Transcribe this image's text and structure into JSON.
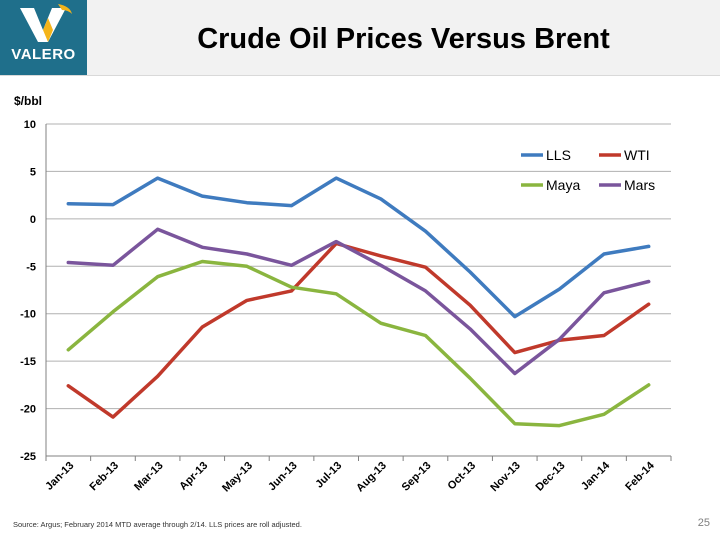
{
  "header": {
    "title": "Crude Oil Prices Versus Brent",
    "logo_text": "VALERO"
  },
  "footer": {
    "source": "Source:  Argus; February 2014 MTD average through 2/14. LLS prices are roll adjusted.",
    "page_number": "25"
  },
  "colors": {
    "brand": "#1f6f8b",
    "LLS": "#3f7bbf",
    "WTI": "#c0392b",
    "Maya": "#8ab53f",
    "Mars": "#7a559c"
  },
  "chart_data": {
    "type": "line",
    "title": "Crude Oil Prices Versus Brent",
    "ylabel": "$/bbl",
    "xlabel": "",
    "ylim": [
      -25,
      10
    ],
    "yticks": [
      10,
      5,
      0,
      -5,
      -10,
      -15,
      -20,
      -25
    ],
    "grid": true,
    "legend_position": "top-right",
    "categories": [
      "Jan-13",
      "Feb-13",
      "Mar-13",
      "Apr-13",
      "May-13",
      "Jun-13",
      "Jul-13",
      "Aug-13",
      "Sep-13",
      "Oct-13",
      "Nov-13",
      "Dec-13",
      "Jan-14",
      "Feb-14"
    ],
    "series": [
      {
        "name": "LLS",
        "values": [
          1.6,
          1.5,
          4.3,
          2.4,
          1.7,
          1.4,
          4.3,
          2.1,
          -1.3,
          -5.6,
          -10.3,
          -7.4,
          -3.7,
          -2.9
        ]
      },
      {
        "name": "WTI",
        "values": [
          -17.6,
          -20.9,
          -16.6,
          -11.4,
          -8.6,
          -7.6,
          -2.6,
          -3.9,
          -5.1,
          -9.1,
          -14.1,
          -12.8,
          -12.3,
          -9.0
        ]
      },
      {
        "name": "Maya",
        "values": [
          -13.8,
          -9.8,
          -6.1,
          -4.5,
          -5.0,
          -7.2,
          -7.9,
          -11.0,
          -12.3,
          -16.8,
          -21.6,
          -21.8,
          -20.6,
          -17.5
        ]
      },
      {
        "name": "Mars",
        "values": [
          -4.6,
          -4.9,
          -1.1,
          -3.0,
          -3.7,
          -4.9,
          -2.4,
          -4.9,
          -7.6,
          -11.6,
          -16.3,
          -12.7,
          -7.8,
          -6.6
        ]
      }
    ]
  }
}
